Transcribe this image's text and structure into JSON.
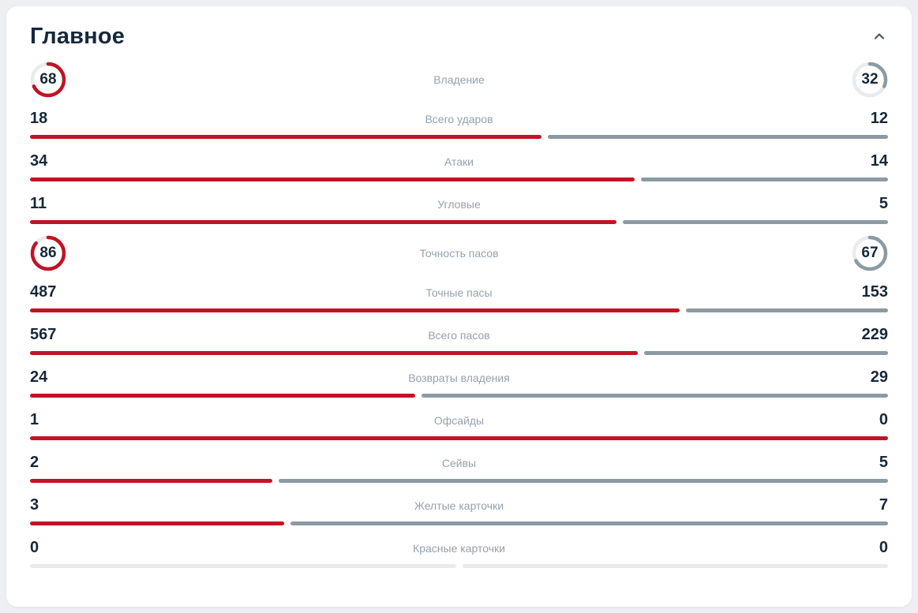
{
  "header": {
    "title": "Главное",
    "collapse_icon": "chevron-up"
  },
  "colors": {
    "home": "#c01425",
    "away": "#8c9aa3",
    "track": "#e9ebed",
    "value_text": "#16283a",
    "label_text": "#94a1ad",
    "card_background": "#ffffff",
    "page_background": "#edeff2"
  },
  "stats": {
    "rows": [
      {
        "type": "gauge",
        "label": "Владение",
        "home": 68,
        "away": 32
      },
      {
        "type": "bar",
        "label": "Всего ударов",
        "home": 18,
        "away": 12
      },
      {
        "type": "bar",
        "label": "Атаки",
        "home": 34,
        "away": 14
      },
      {
        "type": "bar",
        "label": "Угловые",
        "home": 11,
        "away": 5
      },
      {
        "type": "gauge",
        "label": "Точность пасов",
        "home": 86,
        "away": 67
      },
      {
        "type": "bar",
        "label": "Точные пасы",
        "home": 487,
        "away": 153
      },
      {
        "type": "bar",
        "label": "Всего пасов",
        "home": 567,
        "away": 229
      },
      {
        "type": "bar",
        "label": "Возвраты владения",
        "home": 24,
        "away": 29
      },
      {
        "type": "bar",
        "label": "Офсайды",
        "home": 1,
        "away": 0
      },
      {
        "type": "bar",
        "label": "Сейвы",
        "home": 2,
        "away": 5
      },
      {
        "type": "bar",
        "label": "Желтые карточки",
        "home": 3,
        "away": 7
      },
      {
        "type": "bar",
        "label": "Красные карточки",
        "home": 0,
        "away": 0
      }
    ]
  },
  "chart_data": {
    "type": "bar",
    "title": "Главное",
    "categories": [
      "Владение",
      "Всего ударов",
      "Атаки",
      "Угловые",
      "Точность пасов",
      "Точные пасы",
      "Всего пасов",
      "Возвраты владения",
      "Офсайды",
      "Сейвы",
      "Желтые карточки",
      "Красные карточки"
    ],
    "series": [
      {
        "name": "home",
        "values": [
          68,
          18,
          34,
          11,
          86,
          487,
          567,
          24,
          1,
          2,
          3,
          0
        ]
      },
      {
        "name": "away",
        "values": [
          32,
          12,
          14,
          5,
          67,
          153,
          229,
          29,
          0,
          5,
          7,
          0
        ]
      }
    ],
    "legend_position": "none",
    "grid": false
  }
}
